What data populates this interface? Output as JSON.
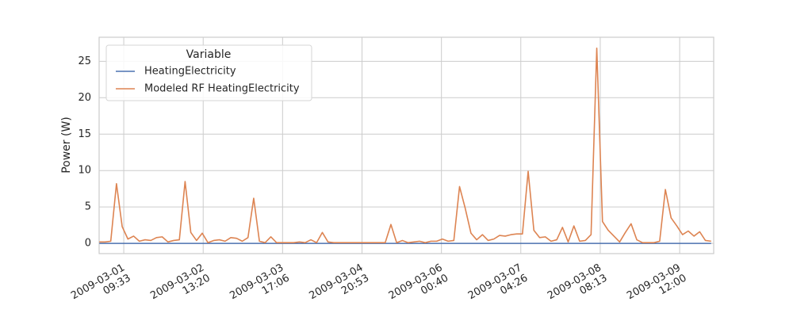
{
  "chart_data": {
    "type": "line",
    "y_label": "Power (W)",
    "legend_title": "Variable",
    "legend": "upper left",
    "grid": true,
    "x": [
      "2009-03-01T01:00",
      "2009-03-01T03:00",
      "2009-03-01T05:00",
      "2009-03-01T07:00",
      "2009-03-01T09:00",
      "2009-03-01T11:00",
      "2009-03-01T13:00",
      "2009-03-01T15:00",
      "2009-03-01T17:00",
      "2009-03-01T19:00",
      "2009-03-01T21:00",
      "2009-03-01T23:00",
      "2009-03-02T01:00",
      "2009-03-02T03:00",
      "2009-03-02T05:00",
      "2009-03-02T07:00",
      "2009-03-02T09:00",
      "2009-03-02T11:00",
      "2009-03-02T13:00",
      "2009-03-02T15:00",
      "2009-03-02T17:00",
      "2009-03-02T19:00",
      "2009-03-02T21:00",
      "2009-03-02T23:00",
      "2009-03-03T01:00",
      "2009-03-03T03:00",
      "2009-03-03T05:00",
      "2009-03-03T07:00",
      "2009-03-03T09:00",
      "2009-03-03T11:00",
      "2009-03-03T13:00",
      "2009-03-03T15:00",
      "2009-03-03T17:00",
      "2009-03-03T19:00",
      "2009-03-03T21:00",
      "2009-03-03T23:00",
      "2009-03-04T01:00",
      "2009-03-04T03:00",
      "2009-03-04T05:00",
      "2009-03-04T07:00",
      "2009-03-04T09:00",
      "2009-03-04T11:00",
      "2009-03-04T13:00",
      "2009-03-04T15:00",
      "2009-03-04T17:00",
      "2009-03-04T19:00",
      "2009-03-04T21:00",
      "2009-03-04T23:00",
      "2009-03-05T01:00",
      "2009-03-05T03:00",
      "2009-03-05T05:00",
      "2009-03-05T07:00",
      "2009-03-05T09:00",
      "2009-03-05T11:00",
      "2009-03-05T13:00",
      "2009-03-05T15:00",
      "2009-03-05T17:00",
      "2009-03-05T19:00",
      "2009-03-05T21:00",
      "2009-03-05T23:00",
      "2009-03-06T01:00",
      "2009-03-06T03:00",
      "2009-03-06T05:00",
      "2009-03-06T07:00",
      "2009-03-06T09:00",
      "2009-03-06T11:00",
      "2009-03-06T13:00",
      "2009-03-06T15:00",
      "2009-03-06T17:00",
      "2009-03-06T19:00",
      "2009-03-06T21:00",
      "2009-03-06T23:00",
      "2009-03-07T01:00",
      "2009-03-07T03:00",
      "2009-03-07T05:00",
      "2009-03-07T07:00",
      "2009-03-07T09:00",
      "2009-03-07T11:00",
      "2009-03-07T13:00",
      "2009-03-07T15:00",
      "2009-03-07T17:00",
      "2009-03-07T19:00",
      "2009-03-07T21:00",
      "2009-03-07T23:00",
      "2009-03-08T01:00",
      "2009-03-08T03:00",
      "2009-03-08T05:00",
      "2009-03-08T07:00",
      "2009-03-08T09:00",
      "2009-03-08T11:00",
      "2009-03-08T13:00",
      "2009-03-08T15:00",
      "2009-03-08T17:00",
      "2009-03-08T19:00",
      "2009-03-08T21:00",
      "2009-03-08T23:00",
      "2009-03-09T01:00",
      "2009-03-09T03:00",
      "2009-03-09T05:00",
      "2009-03-09T07:00",
      "2009-03-09T09:00",
      "2009-03-09T11:00",
      "2009-03-09T13:00",
      "2009-03-09T15:00",
      "2009-03-09T17:00",
      "2009-03-09T19:00",
      "2009-03-09T21:00",
      "2009-03-09T23:00"
    ],
    "series": [
      {
        "name": "HeatingElectricity",
        "color": "#4c72b0",
        "values": [
          0,
          0,
          0,
          0,
          0,
          0,
          0,
          0,
          0,
          0,
          0,
          0,
          0,
          0,
          0,
          0,
          0,
          0,
          0,
          0,
          0,
          0,
          0,
          0,
          0,
          0,
          0,
          0,
          0,
          0,
          0,
          0,
          0,
          0,
          0,
          0,
          0,
          0,
          0,
          0,
          0,
          0,
          0,
          0,
          0,
          0,
          0,
          0,
          0,
          0,
          0,
          0,
          0,
          0,
          0,
          0,
          0,
          0,
          0,
          0,
          0,
          0,
          0,
          0,
          0,
          0,
          0,
          0,
          0,
          0,
          0,
          0,
          0,
          0,
          0,
          0,
          0,
          0,
          0,
          0,
          0,
          0,
          0,
          0,
          0,
          0,
          0,
          0,
          0,
          0,
          0,
          0,
          0,
          0,
          0,
          0,
          0,
          0,
          0,
          0,
          0,
          0,
          0,
          0,
          0,
          0,
          0,
          0
        ]
      },
      {
        "name": "Modeled RF HeatingElectricity",
        "color": "#dd8452",
        "values": [
          0.2,
          0.2,
          0.3,
          8.2,
          2.3,
          0.6,
          1.0,
          0.3,
          0.5,
          0.4,
          0.8,
          0.9,
          0.2,
          0.4,
          0.5,
          8.5,
          1.5,
          0.4,
          1.4,
          0.1,
          0.4,
          0.5,
          0.3,
          0.8,
          0.7,
          0.3,
          0.8,
          6.2,
          0.3,
          0.1,
          0.9,
          0.1,
          0.1,
          0.1,
          0.1,
          0.2,
          0.1,
          0.5,
          0.1,
          1.5,
          0.2,
          0.1,
          0.1,
          0.1,
          0.1,
          0.1,
          0.1,
          0.1,
          0.1,
          0.1,
          0.1,
          2.6,
          0.1,
          0.4,
          0.1,
          0.2,
          0.3,
          0.1,
          0.3,
          0.3,
          0.6,
          0.3,
          0.4,
          7.8,
          4.8,
          1.4,
          0.5,
          1.2,
          0.4,
          0.6,
          1.1,
          1.0,
          1.2,
          1.3,
          1.3,
          9.9,
          1.8,
          0.8,
          0.9,
          0.3,
          0.5,
          2.2,
          0.2,
          2.4,
          0.3,
          0.4,
          1.2,
          26.8,
          3.0,
          1.8,
          1.0,
          0.2,
          1.5,
          2.7,
          0.5,
          0.1,
          0.1,
          0.1,
          0.3,
          7.4,
          3.5,
          2.4,
          1.2,
          1.7,
          1.0,
          1.6,
          0.4,
          0.3
        ]
      }
    ],
    "xlim": [
      "2009-03-01T00:56",
      "2009-03-09T23:54"
    ],
    "xticks": [
      {
        "value": "2009-03-01T09:33",
        "label": "2009-03-01\n09:33"
      },
      {
        "value": "2009-03-02T13:20",
        "label": "2009-03-02\n13:20"
      },
      {
        "value": "2009-03-03T17:06",
        "label": "2009-03-03\n17:06"
      },
      {
        "value": "2009-03-04T20:53",
        "label": "2009-03-04\n20:53"
      },
      {
        "value": "2009-03-06T00:40",
        "label": "2009-03-06\n00:40"
      },
      {
        "value": "2009-03-07T04:26",
        "label": "2009-03-07\n04:26"
      },
      {
        "value": "2009-03-08T08:13",
        "label": "2009-03-08\n08:13"
      },
      {
        "value": "2009-03-09T12:00",
        "label": "2009-03-09\n12:00"
      }
    ],
    "ylim": [
      -1.4,
      28.3
    ],
    "yticks": [
      0,
      5,
      10,
      15,
      20,
      25
    ]
  }
}
